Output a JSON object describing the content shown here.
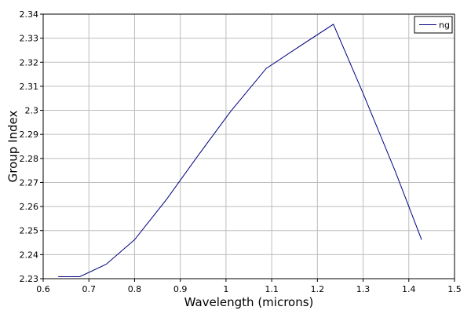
{
  "chart_data": {
    "type": "line",
    "xlabel": "Wavelength (microns)",
    "ylabel": "Group Index",
    "xlim": [
      0.6,
      1.5
    ],
    "ylim": [
      2.23,
      2.34
    ],
    "xticks": [
      "0.6",
      "0.7",
      "0.8",
      "0.9",
      "1",
      "1.1",
      "1.2",
      "1.3",
      "1.4",
      "1.5"
    ],
    "yticks": [
      "2.23",
      "2.24",
      "2.25",
      "2.26",
      "2.27",
      "2.28",
      "2.29",
      "2.3",
      "2.31",
      "2.32",
      "2.33",
      "2.34"
    ],
    "grid": true,
    "legend_position": "top-right",
    "series": [
      {
        "name": "ng",
        "color": "#00007f",
        "x": [
          0.633,
          0.68,
          0.738,
          0.8,
          0.87,
          0.94,
          1.01,
          1.088,
          1.16,
          1.235,
          1.3,
          1.37,
          1.428
        ],
        "y": [
          2.2308,
          2.2308,
          2.236,
          2.2462,
          2.263,
          2.2815,
          2.2995,
          2.3174,
          2.3265,
          2.3358,
          2.307,
          2.2748,
          2.2462
        ]
      }
    ]
  }
}
